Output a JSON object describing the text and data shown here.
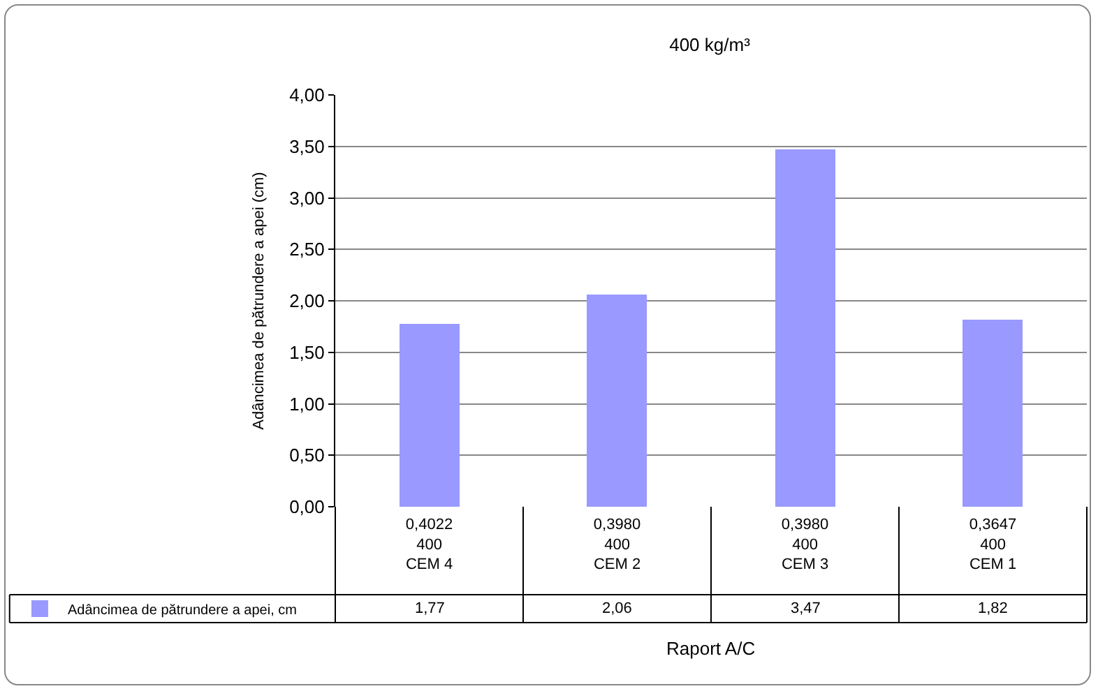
{
  "chart_data": {
    "type": "bar",
    "title": "400 kg/m³",
    "xlabel": "Raport A/C",
    "ylabel": "Adâncimea de pătrundere a apei (cm)",
    "categories": [
      "0,4022\n400\nCEM 4",
      "0,3980\n400\nCEM 2",
      "0,3980\n400\nCEM 3",
      "0,3647\n400\nCEM 1"
    ],
    "series": [
      {
        "name": "Adâncimea de pătrundere a apei, cm",
        "color": "#9999ff",
        "values": [
          1.77,
          2.06,
          3.47,
          1.82
        ],
        "value_labels": [
          "1,77",
          "2,06",
          "3,47",
          "1,82"
        ]
      }
    ],
    "ylim": [
      0,
      4
    ],
    "yticks": [
      {
        "value": 0,
        "label": "0,00"
      },
      {
        "value": 0.5,
        "label": "0,50"
      },
      {
        "value": 1,
        "label": "1,00"
      },
      {
        "value": 1.5,
        "label": "1,50"
      },
      {
        "value": 2,
        "label": "2,00"
      },
      {
        "value": 2.5,
        "label": "2,50"
      },
      {
        "value": 3,
        "label": "3,00"
      },
      {
        "value": 3.5,
        "label": "3,50"
      },
      {
        "value": 4,
        "label": "4,00"
      }
    ],
    "grid": "y",
    "legend": "bottom left"
  }
}
